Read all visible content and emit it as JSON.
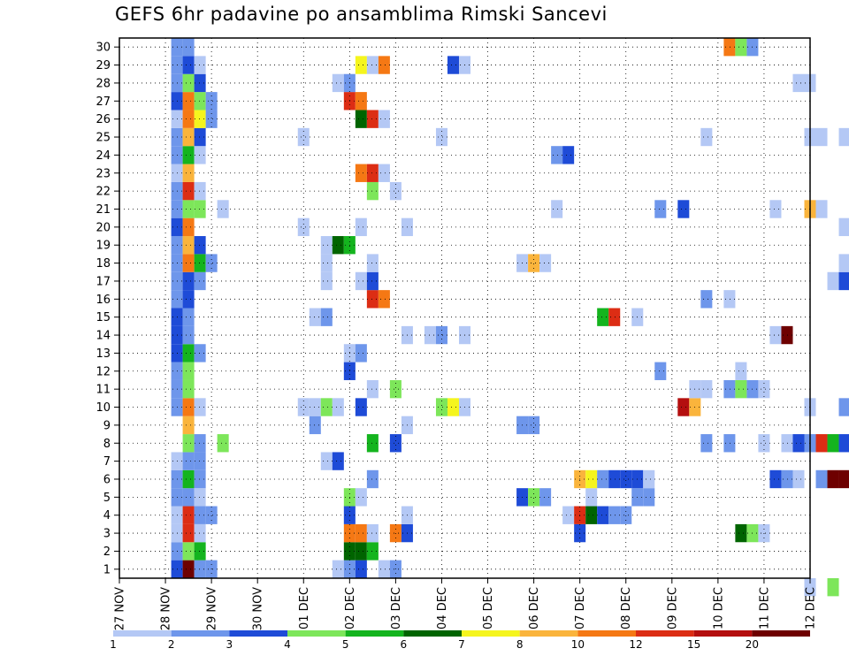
{
  "chart_data": {
    "type": "heatmap",
    "title": "GEFS 6hr padavine po ansamblima Rimski Sancevi",
    "xlabel": "",
    "ylabel": "",
    "members": [
      1,
      2,
      3,
      4,
      5,
      6,
      7,
      8,
      9,
      10,
      11,
      12,
      13,
      14,
      15,
      16,
      17,
      18,
      19,
      20,
      21,
      22,
      23,
      24,
      25,
      26,
      27,
      28,
      29,
      30
    ],
    "x_tick_labels": [
      "27 NOV",
      "28 NOV",
      "29 NOV",
      "30 NOV",
      "01 DEC",
      "02 DEC",
      "03 DEC",
      "04 DEC",
      "05 DEC",
      "06 DEC",
      "07 DEC",
      "08 DEC",
      "09 DEC",
      "10 DEC",
      "11 DEC",
      "12 DEC"
    ],
    "x_range_days": [
      0,
      15
    ],
    "grid": true,
    "colorbar": {
      "labels": [
        "1",
        "2",
        "3",
        "4",
        "5",
        "6",
        "7",
        "8",
        "10",
        "12",
        "15",
        "20"
      ],
      "colors": [
        "#b4c8f5",
        "#6e96eb",
        "#1e4bd7",
        "#7de65a",
        "#14b41e",
        "#006400",
        "#f5f51e",
        "#fab43c",
        "#f57814",
        "#dc2d14",
        "#b40f0f",
        "#6e0000"
      ]
    },
    "cells": [
      [
        1.25,
        1,
        3
      ],
      [
        1.25,
        2,
        2
      ],
      [
        1.25,
        3,
        1
      ],
      [
        1.25,
        4,
        1
      ],
      [
        1.25,
        5,
        2
      ],
      [
        1.25,
        6,
        2
      ],
      [
        1.25,
        7,
        1
      ],
      [
        1.25,
        10,
        2
      ],
      [
        1.25,
        11,
        2
      ],
      [
        1.25,
        12,
        2
      ],
      [
        1.25,
        13,
        3
      ],
      [
        1.25,
        14,
        3
      ],
      [
        1.25,
        15,
        3
      ],
      [
        1.25,
        16,
        2
      ],
      [
        1.25,
        17,
        2
      ],
      [
        1.25,
        18,
        2
      ],
      [
        1.25,
        19,
        2
      ],
      [
        1.25,
        20,
        3
      ],
      [
        1.25,
        21,
        2
      ],
      [
        1.25,
        22,
        2
      ],
      [
        1.25,
        23,
        1
      ],
      [
        1.25,
        24,
        2
      ],
      [
        1.25,
        25,
        2
      ],
      [
        1.25,
        26,
        1
      ],
      [
        1.25,
        27,
        3
      ],
      [
        1.25,
        28,
        2
      ],
      [
        1.25,
        29,
        2
      ],
      [
        1.25,
        30,
        2
      ],
      [
        1.5,
        1,
        12
      ],
      [
        1.5,
        2,
        4
      ],
      [
        1.5,
        3,
        10
      ],
      [
        1.5,
        4,
        10
      ],
      [
        1.5,
        5,
        2
      ],
      [
        1.5,
        6,
        5
      ],
      [
        1.5,
        7,
        2
      ],
      [
        1.5,
        8,
        4
      ],
      [
        1.5,
        9,
        8
      ],
      [
        1.5,
        10,
        9
      ],
      [
        1.5,
        11,
        4
      ],
      [
        1.5,
        12,
        4
      ],
      [
        1.5,
        13,
        5
      ],
      [
        1.5,
        14,
        2
      ],
      [
        1.5,
        15,
        2
      ],
      [
        1.5,
        16,
        3
      ],
      [
        1.5,
        17,
        3
      ],
      [
        1.5,
        18,
        9
      ],
      [
        1.5,
        19,
        8
      ],
      [
        1.5,
        20,
        9
      ],
      [
        1.5,
        21,
        4
      ],
      [
        1.5,
        22,
        10
      ],
      [
        1.5,
        23,
        8
      ],
      [
        1.5,
        24,
        5
      ],
      [
        1.5,
        25,
        8
      ],
      [
        1.5,
        26,
        9
      ],
      [
        1.5,
        27,
        9
      ],
      [
        1.5,
        28,
        4
      ],
      [
        1.5,
        29,
        3
      ],
      [
        1.5,
        30,
        2
      ],
      [
        1.75,
        1,
        2
      ],
      [
        1.75,
        2,
        5
      ],
      [
        1.75,
        3,
        1
      ],
      [
        1.75,
        4,
        2
      ],
      [
        1.75,
        5,
        1
      ],
      [
        1.75,
        6,
        2
      ],
      [
        1.75,
        7,
        2
      ],
      [
        1.75,
        8,
        2
      ],
      [
        1.75,
        10,
        1
      ],
      [
        1.75,
        13,
        2
      ],
      [
        1.75,
        17,
        2
      ],
      [
        1.75,
        18,
        5
      ],
      [
        1.75,
        19,
        3
      ],
      [
        1.75,
        21,
        4
      ],
      [
        1.75,
        22,
        1
      ],
      [
        1.75,
        24,
        1
      ],
      [
        1.75,
        25,
        3
      ],
      [
        1.75,
        26,
        7
      ],
      [
        1.75,
        27,
        4
      ],
      [
        1.75,
        28,
        3
      ],
      [
        1.75,
        29,
        1
      ],
      [
        2.0,
        1,
        2
      ],
      [
        2.0,
        4,
        2
      ],
      [
        2.0,
        18,
        2
      ],
      [
        2.0,
        26,
        2
      ],
      [
        2.0,
        27,
        2
      ],
      [
        2.25,
        8,
        4
      ],
      [
        2.25,
        21,
        1
      ],
      [
        4.0,
        10,
        1
      ],
      [
        4.0,
        20,
        1
      ],
      [
        4.0,
        25,
        1
      ],
      [
        4.25,
        9,
        2
      ],
      [
        4.25,
        10,
        1
      ],
      [
        4.25,
        15,
        1
      ],
      [
        4.5,
        7,
        1
      ],
      [
        4.5,
        10,
        4
      ],
      [
        4.5,
        15,
        2
      ],
      [
        4.5,
        17,
        1
      ],
      [
        4.5,
        18,
        1
      ],
      [
        4.5,
        19,
        1
      ],
      [
        4.75,
        1,
        1
      ],
      [
        4.75,
        10,
        1
      ],
      [
        4.75,
        7,
        3
      ],
      [
        4.75,
        19,
        6
      ],
      [
        4.75,
        28,
        1
      ],
      [
        5.0,
        1,
        2
      ],
      [
        5.0,
        2,
        6
      ],
      [
        5.0,
        3,
        9
      ],
      [
        5.0,
        4,
        3
      ],
      [
        5.0,
        5,
        4
      ],
      [
        5.0,
        12,
        3
      ],
      [
        5.0,
        13,
        1
      ],
      [
        5.0,
        19,
        5
      ],
      [
        5.0,
        27,
        10
      ],
      [
        5.0,
        28,
        2
      ],
      [
        5.25,
        1,
        3
      ],
      [
        5.25,
        2,
        6
      ],
      [
        5.25,
        3,
        9
      ],
      [
        5.25,
        5,
        1
      ],
      [
        5.25,
        10,
        3
      ],
      [
        5.25,
        13,
        2
      ],
      [
        5.25,
        17,
        1
      ],
      [
        5.25,
        20,
        1
      ],
      [
        5.25,
        23,
        9
      ],
      [
        5.25,
        26,
        6
      ],
      [
        5.25,
        27,
        9
      ],
      [
        5.25,
        29,
        7
      ],
      [
        5.5,
        2,
        5
      ],
      [
        5.5,
        3,
        1
      ],
      [
        5.5,
        6,
        2
      ],
      [
        5.5,
        8,
        5
      ],
      [
        5.5,
        11,
        1
      ],
      [
        5.5,
        16,
        10
      ],
      [
        5.5,
        17,
        3
      ],
      [
        5.5,
        18,
        1
      ],
      [
        5.5,
        22,
        4
      ],
      [
        5.5,
        23,
        10
      ],
      [
        5.5,
        26,
        10
      ],
      [
        5.5,
        29,
        1
      ],
      [
        5.75,
        1,
        1
      ],
      [
        5.75,
        16,
        9
      ],
      [
        5.75,
        23,
        1
      ],
      [
        5.75,
        26,
        1
      ],
      [
        5.75,
        29,
        9
      ],
      [
        6.0,
        1,
        2
      ],
      [
        6.0,
        3,
        9
      ],
      [
        6.0,
        8,
        3
      ],
      [
        6.0,
        11,
        4
      ],
      [
        6.0,
        22,
        1
      ],
      [
        6.25,
        3,
        3
      ],
      [
        6.25,
        4,
        1
      ],
      [
        6.25,
        9,
        1
      ],
      [
        6.25,
        14,
        1
      ],
      [
        6.25,
        20,
        1
      ],
      [
        6.75,
        14,
        1
      ],
      [
        7.0,
        10,
        4
      ],
      [
        7.0,
        14,
        2
      ],
      [
        7.0,
        25,
        1
      ],
      [
        7.25,
        10,
        7
      ],
      [
        7.25,
        29,
        3
      ],
      [
        7.5,
        10,
        1
      ],
      [
        7.5,
        14,
        1
      ],
      [
        7.5,
        29,
        1
      ],
      [
        8.75,
        5,
        3
      ],
      [
        8.75,
        9,
        2
      ],
      [
        8.75,
        18,
        1
      ],
      [
        9.0,
        5,
        4
      ],
      [
        9.0,
        9,
        2
      ],
      [
        9.0,
        18,
        8
      ],
      [
        9.25,
        5,
        2
      ],
      [
        9.25,
        18,
        1
      ],
      [
        9.5,
        24,
        2
      ],
      [
        9.75,
        24,
        3
      ],
      [
        9.5,
        21,
        1
      ],
      [
        9.75,
        4,
        1
      ],
      [
        10.0,
        3,
        3
      ],
      [
        10.0,
        4,
        10
      ],
      [
        10.0,
        6,
        8
      ],
      [
        10.25,
        4,
        6
      ],
      [
        10.25,
        5,
        1
      ],
      [
        10.25,
        6,
        7
      ],
      [
        10.5,
        4,
        3
      ],
      [
        10.5,
        6,
        2
      ],
      [
        10.5,
        15,
        5
      ],
      [
        10.75,
        4,
        2
      ],
      [
        10.75,
        6,
        3
      ],
      [
        10.75,
        15,
        10
      ],
      [
        11.0,
        4,
        2
      ],
      [
        11.0,
        6,
        3
      ],
      [
        11.25,
        5,
        2
      ],
      [
        11.25,
        6,
        3
      ],
      [
        11.25,
        15,
        1
      ],
      [
        11.5,
        5,
        2
      ],
      [
        11.5,
        6,
        1
      ],
      [
        11.75,
        12,
        2
      ],
      [
        11.75,
        21,
        2
      ],
      [
        12.25,
        10,
        11
      ],
      [
        12.25,
        21,
        3
      ],
      [
        12.5,
        10,
        8
      ],
      [
        12.5,
        11,
        1
      ],
      [
        12.75,
        8,
        2
      ],
      [
        12.75,
        11,
        1
      ],
      [
        12.75,
        16,
        2
      ],
      [
        12.75,
        25,
        1
      ],
      [
        13.25,
        8,
        2
      ],
      [
        13.25,
        11,
        2
      ],
      [
        13.25,
        16,
        1
      ],
      [
        13.25,
        30,
        9
      ],
      [
        13.5,
        11,
        4
      ],
      [
        13.5,
        3,
        6
      ],
      [
        13.5,
        12,
        1
      ],
      [
        13.5,
        30,
        4
      ],
      [
        13.75,
        3,
        4
      ],
      [
        13.75,
        11,
        2
      ],
      [
        13.75,
        30,
        2
      ],
      [
        14.0,
        3,
        1
      ],
      [
        14.0,
        8,
        1
      ],
      [
        14.0,
        11,
        1
      ],
      [
        14.25,
        6,
        3
      ],
      [
        14.25,
        14,
        1
      ],
      [
        14.25,
        21,
        1
      ],
      [
        14.5,
        6,
        2
      ],
      [
        14.5,
        8,
        1
      ],
      [
        14.5,
        14,
        12
      ],
      [
        14.75,
        6,
        1
      ],
      [
        14.75,
        8,
        3
      ],
      [
        14.75,
        28,
        1
      ],
      [
        15.0,
        0,
        1
      ],
      [
        15.0,
        8,
        2
      ],
      [
        15.0,
        10,
        1
      ],
      [
        15.0,
        21,
        8
      ],
      [
        15.0,
        25,
        1
      ],
      [
        15.0,
        28,
        1
      ],
      [
        15.25,
        6,
        2
      ],
      [
        15.25,
        8,
        10
      ],
      [
        15.25,
        21,
        1
      ],
      [
        15.25,
        25,
        1
      ],
      [
        15.5,
        0,
        4
      ],
      [
        15.5,
        6,
        12
      ],
      [
        15.5,
        8,
        5
      ],
      [
        15.5,
        17,
        1
      ],
      [
        15.75,
        6,
        12
      ],
      [
        15.75,
        8,
        3
      ],
      [
        15.75,
        10,
        2
      ],
      [
        15.75,
        17,
        3
      ],
      [
        15.75,
        18,
        1
      ],
      [
        15.75,
        20,
        1
      ],
      [
        15.75,
        25,
        1
      ]
    ]
  }
}
